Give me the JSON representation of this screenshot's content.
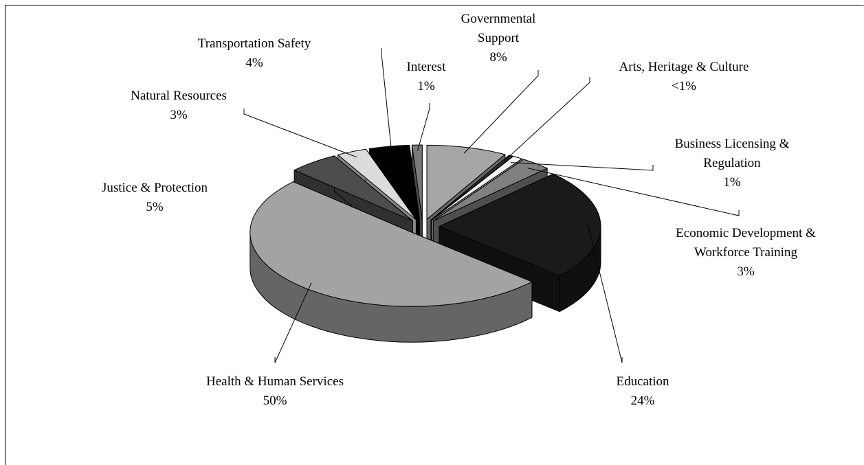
{
  "chart_data": {
    "type": "pie",
    "pie_3d": true,
    "categories": [
      "Governmental Support",
      "Arts, Heritage & Culture",
      "Business Licensing & Regulation",
      "Economic Development & Workforce Training",
      "Education",
      "Health & Human Services",
      "Justice & Protection",
      "Natural Resources",
      "Transportation Safety",
      "Interest"
    ],
    "values": [
      8,
      0.4,
      1,
      3,
      24,
      50,
      5,
      3,
      4,
      1
    ],
    "value_labels": [
      "8%",
      "<1%",
      "1%",
      "3%",
      "24%",
      "50%",
      "5%",
      "3%",
      "4%",
      "1%"
    ],
    "colors": [
      "#a6a6a6",
      "#333333",
      "#f2f2f2",
      "#808080",
      "#1a1a1a",
      "#a3a3a3",
      "#4d4d4d",
      "#dcdcdc",
      "#000000",
      "#7a7a7a"
    ]
  }
}
